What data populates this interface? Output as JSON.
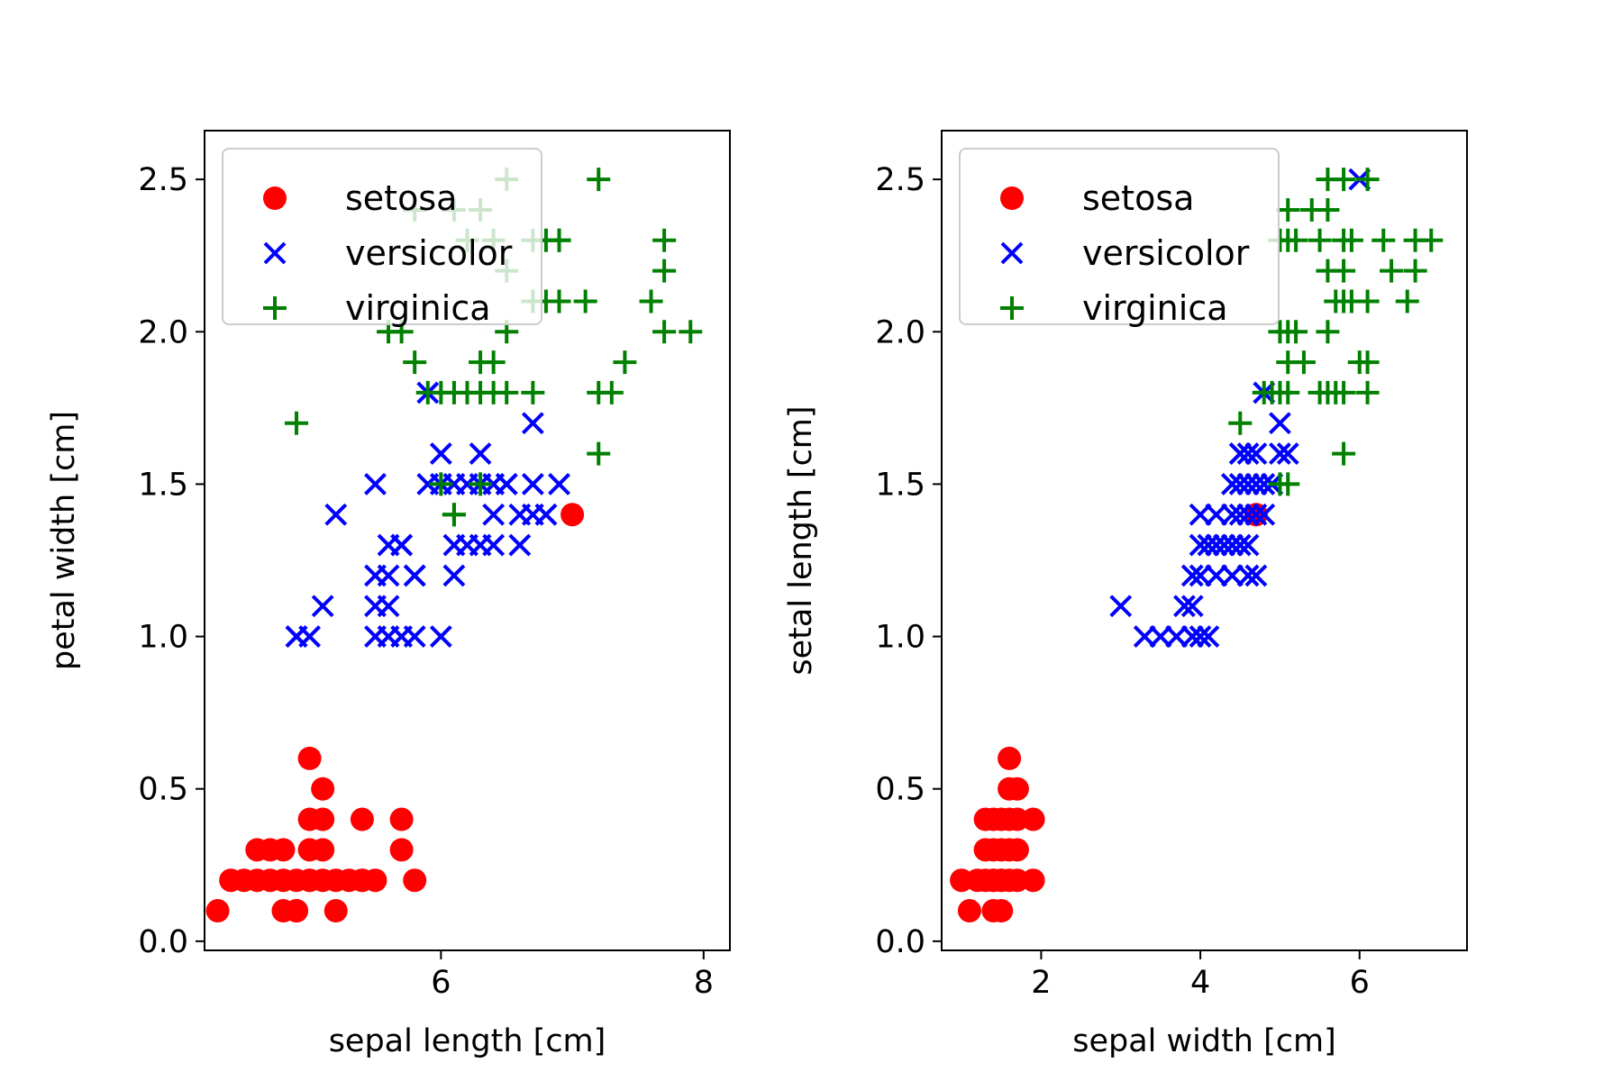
{
  "colors": {
    "setosa": "#ff0000",
    "versicolor": "#0000ff",
    "virginica": "#008000",
    "background": "#ffffff",
    "axes": "#000000"
  },
  "chart_data": [
    {
      "type": "scatter",
      "xlabel": "sepal length [cm]",
      "ylabel": "petal width [cm]",
      "xlim": [
        4.2,
        8.2
      ],
      "ylim": [
        -0.03,
        2.66
      ],
      "xticks": [
        6,
        8
      ],
      "xtick_labels": [
        "6",
        "8"
      ],
      "yticks": [
        0.0,
        0.5,
        1.0,
        1.5,
        2.0,
        2.5
      ],
      "ytick_labels": [
        "0.0",
        "0.5",
        "1.0",
        "1.5",
        "2.0",
        "2.5"
      ],
      "grid": false,
      "legend_position": "upper-left",
      "series": [
        {
          "name": "setosa",
          "marker": "circle",
          "color": "#ff0000",
          "x": [
            4.3,
            4.4,
            4.5,
            4.6,
            4.7,
            4.8,
            4.9,
            5.0,
            5.1,
            5.2,
            5.3,
            5.4,
            5.5,
            4.6,
            4.7,
            4.8,
            5.0,
            5.0,
            5.1,
            5.4,
            5.7,
            4.8,
            4.9,
            5.2,
            4.9,
            5.0,
            5.1,
            5.4,
            5.7,
            5.1,
            5.0,
            5.8,
            7.0
          ],
          "y": [
            0.1,
            0.2,
            0.2,
            0.2,
            0.2,
            0.2,
            0.2,
            0.2,
            0.2,
            0.2,
            0.2,
            0.2,
            0.2,
            0.3,
            0.3,
            0.3,
            0.3,
            0.4,
            0.4,
            0.4,
            0.4,
            0.1,
            0.1,
            0.1,
            0.1,
            0.6,
            0.5,
            0.2,
            0.3,
            0.3,
            0.2,
            0.2,
            1.4
          ]
        },
        {
          "name": "versicolor",
          "marker": "x",
          "color": "#0000ff",
          "x": [
            4.9,
            5.0,
            5.1,
            5.2,
            5.5,
            5.6,
            5.8,
            6.0,
            5.5,
            5.6,
            5.7,
            5.8,
            5.5,
            5.6,
            5.7,
            5.8,
            6.1,
            6.1,
            6.2,
            6.3,
            6.4,
            6.5,
            6.6,
            6.0,
            6.3,
            6.1,
            6.2,
            6.4,
            6.5,
            6.7,
            6.8,
            6.9,
            6.0,
            6.3,
            6.7,
            6.8,
            5.9,
            5.9,
            6.7,
            6.6,
            4.9,
            6.4,
            5.6,
            5.7,
            5.5
          ],
          "y": [
            1.0,
            1.0,
            1.1,
            1.4,
            1.0,
            1.0,
            1.0,
            1.0,
            1.1,
            1.1,
            1.0,
            1.2,
            1.2,
            1.2,
            1.3,
            1.2,
            1.2,
            1.3,
            1.3,
            1.3,
            1.3,
            1.5,
            1.4,
            1.6,
            1.6,
            1.5,
            1.5,
            1.5,
            1.5,
            1.5,
            1.4,
            1.5,
            1.5,
            1.5,
            1.7,
            1.4,
            1.8,
            1.5,
            1.4,
            1.3,
            1.0,
            1.4,
            1.3,
            1.3,
            1.5
          ]
        },
        {
          "name": "virginica",
          "marker": "plus",
          "color": "#008000",
          "x": [
            4.9,
            5.6,
            5.7,
            5.8,
            5.9,
            6.0,
            6.1,
            6.2,
            6.3,
            6.4,
            6.5,
            6.7,
            6.0,
            6.1,
            6.3,
            6.4,
            6.5,
            6.7,
            6.8,
            6.9,
            7.1,
            7.2,
            7.3,
            7.4,
            7.6,
            7.7,
            7.9,
            6.2,
            6.4,
            6.7,
            7.7,
            6.3,
            6.5,
            6.8,
            6.9,
            7.2,
            7.7,
            6.1,
            7.2,
            6.3,
            6.1,
            6.9,
            6.5,
            5.8
          ],
          "y": [
            1.7,
            2.0,
            2.0,
            1.9,
            1.8,
            1.8,
            1.8,
            1.8,
            1.8,
            1.8,
            1.8,
            1.8,
            1.5,
            1.4,
            1.9,
            1.9,
            2.0,
            2.1,
            2.1,
            2.1,
            2.1,
            1.8,
            1.8,
            1.9,
            2.1,
            2.0,
            2.0,
            2.3,
            2.3,
            2.3,
            2.3,
            2.4,
            2.2,
            2.3,
            2.3,
            2.5,
            2.2,
            1.4,
            1.6,
            1.5,
            2.4,
            2.3,
            2.5,
            2.4
          ]
        }
      ]
    },
    {
      "type": "scatter",
      "xlabel": "sepal width [cm]",
      "ylabel": "setal length [cm]",
      "xlim": [
        0.75,
        7.35
      ],
      "ylim": [
        -0.03,
        2.66
      ],
      "xticks": [
        2,
        4,
        6
      ],
      "xtick_labels": [
        "2",
        "4",
        "6"
      ],
      "yticks": [
        0.0,
        0.5,
        1.0,
        1.5,
        2.0,
        2.5
      ],
      "ytick_labels": [
        "0.0",
        "0.5",
        "1.0",
        "1.5",
        "2.0",
        "2.5"
      ],
      "grid": false,
      "legend_position": "upper-left",
      "series": [
        {
          "name": "setosa",
          "marker": "circle",
          "color": "#ff0000",
          "x": [
            1.0,
            1.2,
            1.3,
            1.4,
            1.5,
            1.6,
            1.7,
            1.9,
            1.4,
            1.5,
            1.3,
            1.4,
            1.5,
            1.6,
            1.7,
            1.3,
            1.4,
            1.5,
            1.6,
            1.7,
            1.9,
            1.1,
            1.4,
            1.5,
            1.6,
            1.7,
            1.6,
            4.7
          ],
          "y": [
            0.2,
            0.2,
            0.2,
            0.2,
            0.2,
            0.2,
            0.2,
            0.2,
            0.1,
            0.1,
            0.3,
            0.3,
            0.3,
            0.3,
            0.3,
            0.4,
            0.4,
            0.4,
            0.4,
            0.4,
            0.4,
            0.1,
            0.2,
            0.2,
            0.5,
            0.5,
            0.6,
            1.4
          ]
        },
        {
          "name": "versicolor",
          "marker": "x",
          "color": "#0000ff",
          "x": [
            3.0,
            3.3,
            3.5,
            3.7,
            3.9,
            4.0,
            4.1,
            3.8,
            3.9,
            3.9,
            4.0,
            4.2,
            4.4,
            4.6,
            4.7,
            4.0,
            4.1,
            4.2,
            4.3,
            4.4,
            4.5,
            4.6,
            4.0,
            4.2,
            4.4,
            4.5,
            4.6,
            4.7,
            4.8,
            4.9,
            4.5,
            4.6,
            4.7,
            4.8,
            4.4,
            4.7,
            5.0,
            4.5,
            4.9,
            5.0,
            5.1,
            4.8,
            4.5,
            4.6,
            6.0
          ],
          "y": [
            1.1,
            1.0,
            1.0,
            1.0,
            1.0,
            1.0,
            1.0,
            1.1,
            1.1,
            1.2,
            1.2,
            1.2,
            1.2,
            1.2,
            1.2,
            1.3,
            1.3,
            1.3,
            1.3,
            1.3,
            1.3,
            1.3,
            1.4,
            1.4,
            1.4,
            1.4,
            1.4,
            1.4,
            1.4,
            1.5,
            1.5,
            1.5,
            1.5,
            1.5,
            1.5,
            1.6,
            1.7,
            1.6,
            1.5,
            1.6,
            1.6,
            1.8,
            1.6,
            1.6,
            2.5
          ]
        },
        {
          "name": "virginica",
          "marker": "plus",
          "color": "#008000",
          "x": [
            4.5,
            4.8,
            4.9,
            5.0,
            5.1,
            5.1,
            5.5,
            5.6,
            5.7,
            5.8,
            6.1,
            5.0,
            5.1,
            5.2,
            5.6,
            5.7,
            5.8,
            5.9,
            6.1,
            6.6,
            6.7,
            5.0,
            5.1,
            5.6,
            5.8,
            5.9,
            6.4,
            6.7,
            5.0,
            5.1,
            5.5,
            5.8,
            6.3,
            5.2,
            5.4,
            5.6,
            5.6,
            5.8,
            6.1,
            6.9,
            5.3,
            6.0,
            6.1,
            5.8,
            5.1
          ],
          "y": [
            1.7,
            1.8,
            1.8,
            1.8,
            1.8,
            1.9,
            1.8,
            1.8,
            1.8,
            1.8,
            1.8,
            1.5,
            1.5,
            2.0,
            2.0,
            2.1,
            2.1,
            2.1,
            2.1,
            2.1,
            2.2,
            2.0,
            2.0,
            2.2,
            2.2,
            2.3,
            2.2,
            2.3,
            2.3,
            2.3,
            2.3,
            2.3,
            2.3,
            2.3,
            2.4,
            2.4,
            2.5,
            2.5,
            2.5,
            2.3,
            1.9,
            1.9,
            1.9,
            1.6,
            2.4
          ]
        }
      ]
    }
  ]
}
